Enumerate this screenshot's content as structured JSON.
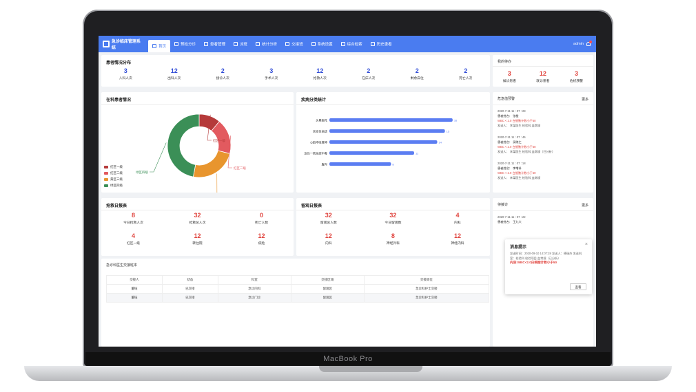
{
  "device_label": "MacBook Pro",
  "nav": {
    "brand": "急诊临床管理系统",
    "tabs": [
      "首页",
      "预检分诊",
      "患者管理",
      "派班",
      "统计分析",
      "交接班",
      "系统设置",
      "综合检索",
      "历史患者"
    ],
    "user": "admin"
  },
  "patient_dist": {
    "title": "患者情况分布",
    "stats": [
      {
        "value": "3",
        "label": "入科人次"
      },
      {
        "value": "12",
        "label": "出科人次"
      },
      {
        "value": "2",
        "label": "接诊人次"
      },
      {
        "value": "3",
        "label": "手术人次"
      },
      {
        "value": "12",
        "label": "抢救人次"
      },
      {
        "value": "2",
        "label": "在床人次"
      },
      {
        "value": "2",
        "label": "剩余床位"
      },
      {
        "value": "2",
        "label": "死亡人次"
      }
    ]
  },
  "my_todo": {
    "title": "我的待办",
    "stats": [
      {
        "value": "3",
        "label": "候诊患者"
      },
      {
        "value": "12",
        "label": "就诊患者"
      },
      {
        "value": "3",
        "label": "危机预警"
      }
    ]
  },
  "in_dept": {
    "title": "在科患者情况",
    "legend": [
      "红区一级",
      "红区二级",
      "黄区三级",
      "绿区四级"
    ],
    "colors": [
      "#b53a3a",
      "#e25a5f",
      "#e8952e",
      "#3b8f57"
    ],
    "slice_labels": [
      "红区一级",
      "红区二级",
      "黄区三级",
      "绿区四级"
    ]
  },
  "chart_data": {
    "type": "bar",
    "title": "疾病分类统计",
    "categories": [
      "头晕眼花",
      "突发性高烧",
      "心脏呼吸骤停",
      "急性一氧化碳中毒",
      "腹泻"
    ],
    "values": [
      16,
      15,
      14,
      11,
      8
    ],
    "color": "#5b7df2",
    "xlim": [
      0,
      17
    ]
  },
  "critical_warning": {
    "title": "危急值预警",
    "more": "更多",
    "items": [
      {
        "time": "2020-7-11  11 : 07 : 28",
        "patient": "患者姓名：  张橙",
        "alert": "WBC < 2.0 白细胞计数小于50",
        "source": "发送人：  李某医生 检验科 血常规"
      },
      {
        "time": "2020-7-11  11 : 07 : 46",
        "patient": "患者姓名：  吴晓仁",
        "alert": "WBC < 2.0 白细胞计数小于50",
        "source": "发送人：  李某医生 检验科 血常规（已分析）"
      },
      {
        "time": "2020-7-11  11 : 07 : 18",
        "patient": "患者姓名：  李增补",
        "alert": "WBC < 2.0 白细胞计数小于50",
        "source": "发送人：  李某医生 检验科 血常规"
      }
    ]
  },
  "pending": {
    "title": "待接诊",
    "more": "更多",
    "items": [
      {
        "time": "2020-7-11  11 : 07 : 22",
        "patient": "患者姓名：  王九六"
      }
    ]
  },
  "rescue_daily": {
    "title": "抢救日报表",
    "stats": [
      {
        "value": "8",
        "label": "今日抢救人次"
      },
      {
        "value": "32",
        "label": "抢救总人次"
      },
      {
        "value": "0",
        "label": "死亡人数"
      },
      {
        "value": "4",
        "label": "红区一级"
      },
      {
        "value": "12",
        "label": "转住院"
      },
      {
        "value": "12",
        "label": "病危"
      }
    ]
  },
  "observe_daily": {
    "title": "留观日报表",
    "stats": [
      {
        "value": "32",
        "label": "留观总人数"
      },
      {
        "value": "32",
        "label": "今日留观数"
      },
      {
        "value": "4",
        "label": "内科"
      },
      {
        "value": "12",
        "label": "内科"
      },
      {
        "value": "8",
        "label": "神经外科"
      },
      {
        "value": "12",
        "label": "神经内科"
      }
    ]
  },
  "handover": {
    "title": "急诊科医生交接班本",
    "headers": [
      "交接人",
      "状态",
      "科室",
      "交接区域",
      "交接岗位"
    ],
    "rows": [
      [
        "董钰",
        "已交接",
        "急诊内科",
        "留观区",
        "急诊科护士交接"
      ],
      [
        "董钰",
        "已交接",
        "急诊门诊",
        "留观区",
        "急诊科护士交接"
      ]
    ]
  },
  "popup": {
    "title": "消息提示",
    "body": "发送时间：2020-09-10 14:07:28 发送人：傅瑞杰 发送科室：检验科 检验项目 血常规（已分析）",
    "alert": "内容:WBC<2.0白细胞计数小于50",
    "button": "查看",
    "close": "×"
  }
}
